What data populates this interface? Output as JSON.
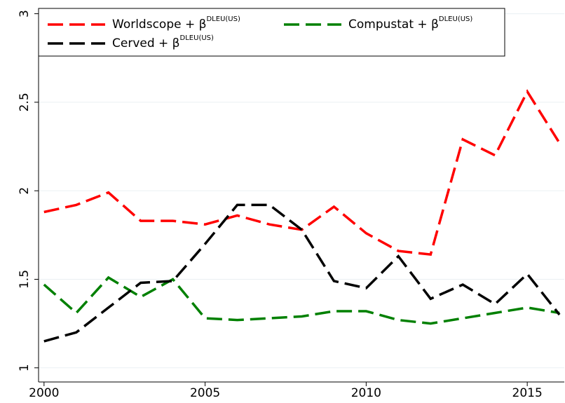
{
  "chart_data": {
    "type": "line",
    "x": [
      2000,
      2001,
      2002,
      2003,
      2004,
      2005,
      2006,
      2007,
      2008,
      2009,
      2010,
      2011,
      2012,
      2013,
      2014,
      2015,
      2016
    ],
    "series": [
      {
        "name": "Worldscope + β",
        "name_sup": "DLEU(US)",
        "color": "#ff0000",
        "values": [
          1.88,
          1.92,
          1.99,
          1.83,
          1.83,
          1.81,
          1.86,
          1.81,
          1.78,
          1.91,
          1.76,
          1.66,
          1.64,
          2.29,
          2.2,
          2.56,
          2.27
        ]
      },
      {
        "name": "Compustat + β",
        "name_sup": "DLEU(US)",
        "color": "#008000",
        "values": [
          1.47,
          1.31,
          1.51,
          1.4,
          1.5,
          1.28,
          1.27,
          1.28,
          1.29,
          1.32,
          1.32,
          1.27,
          1.25,
          1.28,
          1.31,
          1.34,
          1.31
        ]
      },
      {
        "name": "Cerved + β",
        "name_sup": "DLEU(US)",
        "color": "#000000",
        "values": [
          1.15,
          1.2,
          1.34,
          1.48,
          1.49,
          1.7,
          1.92,
          1.92,
          1.78,
          1.49,
          1.45,
          1.63,
          1.39,
          1.47,
          1.36,
          1.53,
          1.3
        ]
      }
    ],
    "xlim": [
      1999.83,
      2016.15
    ],
    "xticks": [
      2000,
      2005,
      2010,
      2015
    ],
    "ylim": [
      0.92,
      3.03
    ],
    "yticks": [
      1,
      1.5,
      2,
      2.5,
      3
    ],
    "grid": true,
    "legend": "top-left"
  }
}
